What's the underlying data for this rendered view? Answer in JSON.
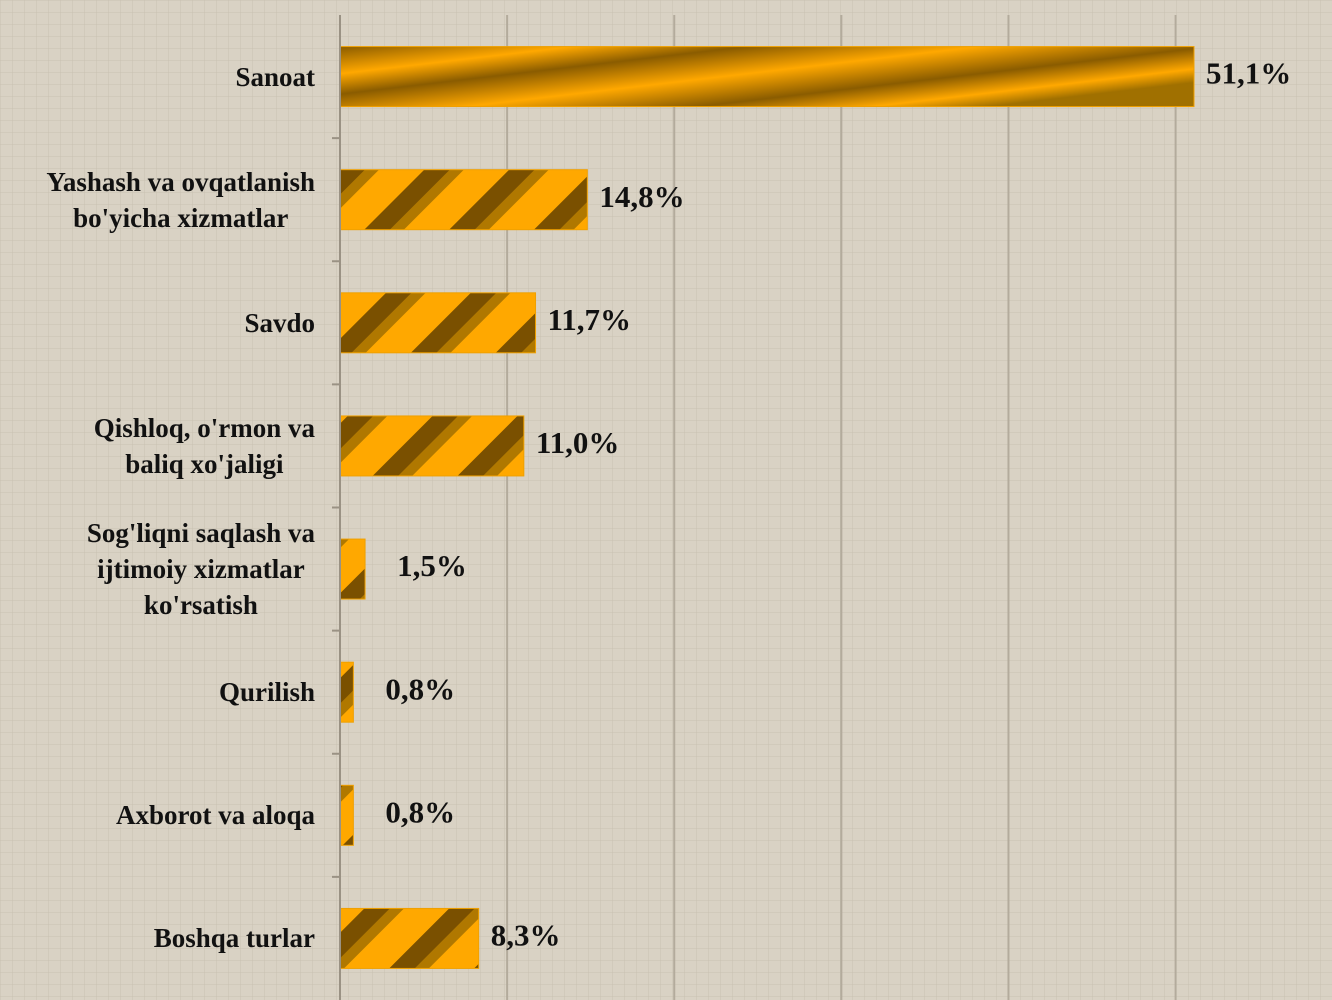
{
  "chart_data": {
    "type": "barh",
    "categories": [
      "Sanoat",
      "Yashash va ovqatlanish\nbo'yicha xizmatlar",
      "Savdo",
      "Qishloq, o'rmon va\nbaliq xo'jaligi",
      "Sog'liqni saqlash va\nijtimoiy xizmatlar\nko'rsatish",
      "Qurilish",
      "Axborot va aloqa",
      "Boshqa turlar"
    ],
    "values": [
      51.1,
      14.8,
      11.7,
      11.0,
      1.5,
      0.8,
      0.8,
      8.3
    ],
    "value_labels": [
      "51,1%",
      "14,8%",
      "11,7%",
      "11,0%",
      "1,5%",
      "0,8%",
      "0,8%",
      "8,3%"
    ],
    "color": "#f0a000",
    "xlim": [
      0,
      59
    ],
    "xticks": [
      0,
      10,
      20,
      30,
      40,
      50
    ],
    "grid": true
  }
}
